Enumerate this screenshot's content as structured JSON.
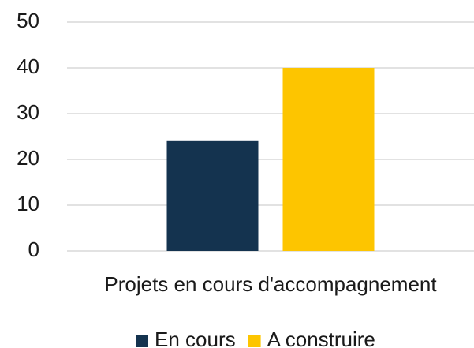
{
  "chart_data": {
    "type": "bar",
    "categories": [
      "Projets en cours d'accompagnement"
    ],
    "series": [
      {
        "name": "En cours",
        "color": "#14334f",
        "values": [
          24
        ]
      },
      {
        "name": "A construire",
        "color": "#fdc500",
        "values": [
          40
        ]
      }
    ],
    "ylim": [
      0,
      50
    ],
    "yticks": [
      0,
      10,
      20,
      30,
      40,
      50
    ],
    "grid": true,
    "legend": "bottom"
  }
}
